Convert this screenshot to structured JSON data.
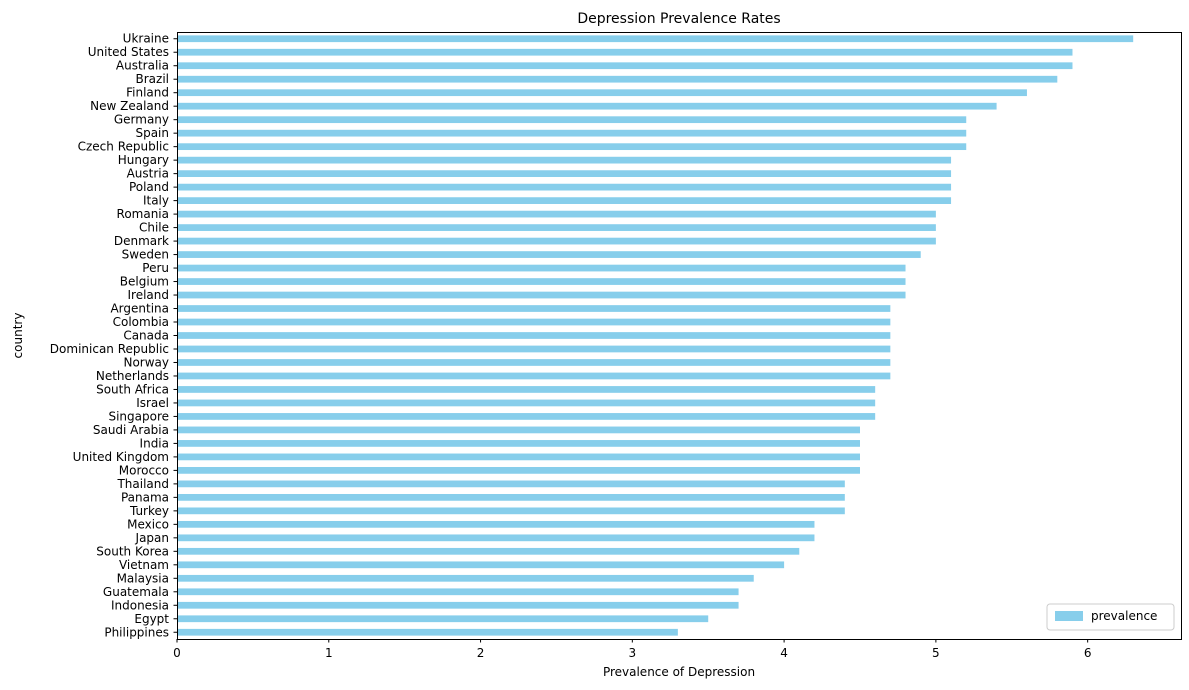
{
  "chart_data": {
    "type": "bar",
    "orientation": "horizontal",
    "title": "Depression Prevalence Rates",
    "xlabel": "Prevalence of Depression",
    "ylabel": "country",
    "xlim": [
      0,
      6.615
    ],
    "xticks": [
      0,
      1,
      2,
      3,
      4,
      5,
      6
    ],
    "grid": false,
    "legend_position": "bottom-right",
    "bar_color": "#87CEEB",
    "categories": [
      "Ukraine",
      "United States",
      "Australia",
      "Brazil",
      "Finland",
      "New Zealand",
      "Germany",
      "Spain",
      "Czech Republic",
      "Hungary",
      "Austria",
      "Poland",
      "Italy",
      "Romania",
      "Chile",
      "Denmark",
      "Sweden",
      "Peru",
      "Belgium",
      "Ireland",
      "Argentina",
      "Colombia",
      "Canada",
      "Dominican Republic",
      "Norway",
      "Netherlands",
      "South Africa",
      "Israel",
      "Singapore",
      "Saudi Arabia",
      "India",
      "United Kingdom",
      "Morocco",
      "Thailand",
      "Panama",
      "Turkey",
      "Mexico",
      "Japan",
      "South Korea",
      "Vietnam",
      "Malaysia",
      "Guatemala",
      "Indonesia",
      "Egypt",
      "Philippines"
    ],
    "series": [
      {
        "name": "prevalence",
        "values": [
          6.3,
          5.9,
          5.9,
          5.8,
          5.6,
          5.4,
          5.2,
          5.2,
          5.2,
          5.1,
          5.1,
          5.1,
          5.1,
          5.0,
          5.0,
          5.0,
          4.9,
          4.8,
          4.8,
          4.8,
          4.7,
          4.7,
          4.7,
          4.7,
          4.7,
          4.7,
          4.6,
          4.6,
          4.6,
          4.5,
          4.5,
          4.5,
          4.5,
          4.4,
          4.4,
          4.4,
          4.2,
          4.2,
          4.1,
          4.0,
          3.8,
          3.7,
          3.7,
          3.5,
          3.3
        ]
      }
    ]
  }
}
